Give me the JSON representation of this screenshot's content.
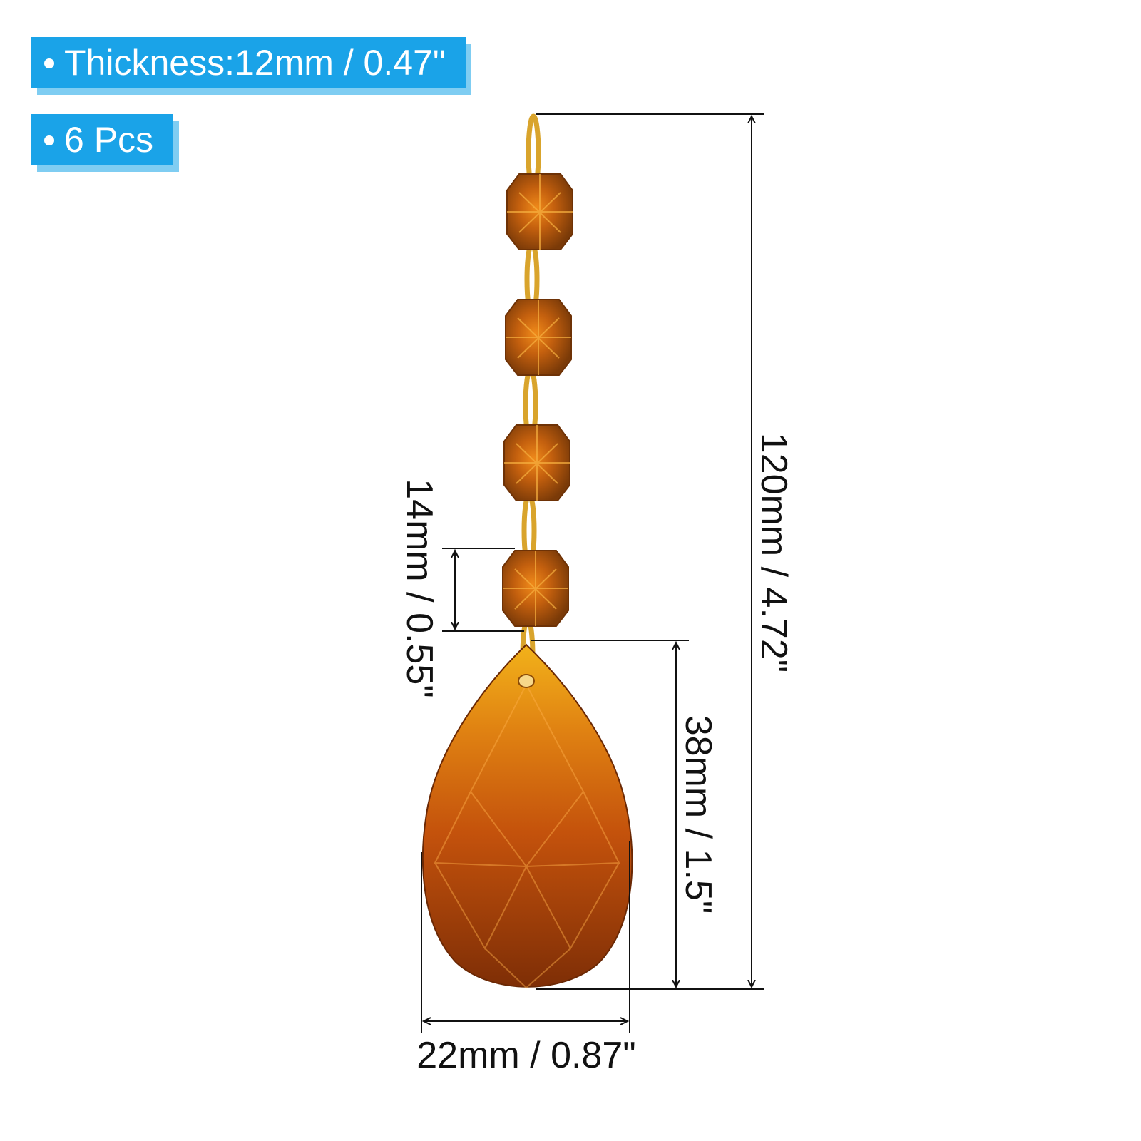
{
  "badges": {
    "thickness": "Thickness:12mm / 0.47\"",
    "count": "6 Pcs"
  },
  "dimensions": {
    "total_length": "120mm / 4.72\"",
    "bead_size": "14mm / 0.55\"",
    "pendant_length": "38mm / 1.5\"",
    "pendant_width": "22mm / 0.87\""
  },
  "colors": {
    "badge": "#1aa3e8",
    "crystal": "#b34a0a",
    "ring": "#d9a42c"
  }
}
